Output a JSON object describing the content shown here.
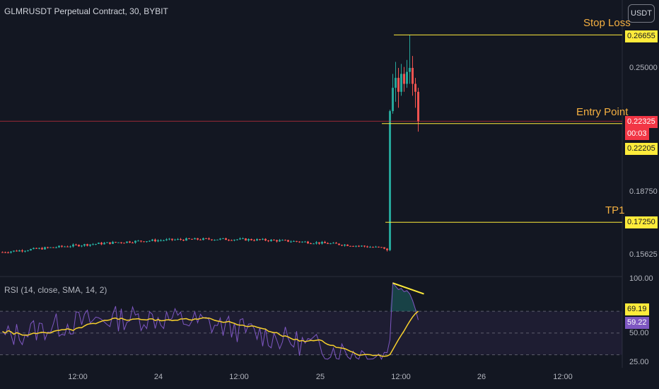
{
  "header": {
    "title": "GLMRUSDT Perpetual Contract, 30, BYBIT",
    "currency_button": "USDT"
  },
  "rsi": {
    "title": "RSI (14, close, SMA, 14, 2)",
    "value_rsi": "69.19",
    "value_ma": "59.22",
    "levels": [
      100,
      70,
      50,
      30
    ]
  },
  "annotations": {
    "stop_loss": "Stop Loss",
    "entry_point": "Entry Point",
    "tp1": "TP1"
  },
  "price_tags": {
    "stop_loss": "0.26655",
    "current": "0.22325",
    "countdown": "00:03",
    "entry": "0.22205",
    "tp1": "0.17250"
  },
  "price_axis": {
    "ticks": [
      "0.25000",
      "0.18750",
      "0.15625"
    ],
    "rsi_ticks": [
      "100.00",
      "50.00",
      "25.00"
    ]
  },
  "time_axis": {
    "labels": [
      "12:00",
      "24",
      "12:00",
      "25",
      "12:00",
      "26",
      "12:00"
    ]
  },
  "colors": {
    "up": "#26a69a",
    "down": "#ef5350",
    "level_line": "#ffeb3b",
    "rsi_line": "#7e57c2",
    "rsi_ma": "#f7d02c",
    "annotation": "#f5b041"
  },
  "chart_data": {
    "type": "candlestick",
    "title": "GLMRUSDT Perpetual Contract, 30, BYBIT",
    "price_levels": {
      "stop_loss": 0.26655,
      "entry": 0.22205,
      "tp1": 0.1725,
      "current": 0.22325
    },
    "y_ticks": [
      0.25,
      0.1875,
      0.15625
    ],
    "phases": [
      {
        "segment": "consolidation",
        "start_price": 0.1575,
        "end_price": 0.164
      },
      {
        "segment": "pump",
        "close": 0.2283,
        "high": 0.253
      },
      {
        "segment": "spike_high",
        "high": 0.2665
      },
      {
        "segment": "retrace",
        "close": 0.2232
      }
    ],
    "rsi": {
      "length": 14,
      "current": 69.19,
      "ma": 59.22,
      "overbought": 70,
      "mid": 50,
      "oversold": 30
    }
  }
}
